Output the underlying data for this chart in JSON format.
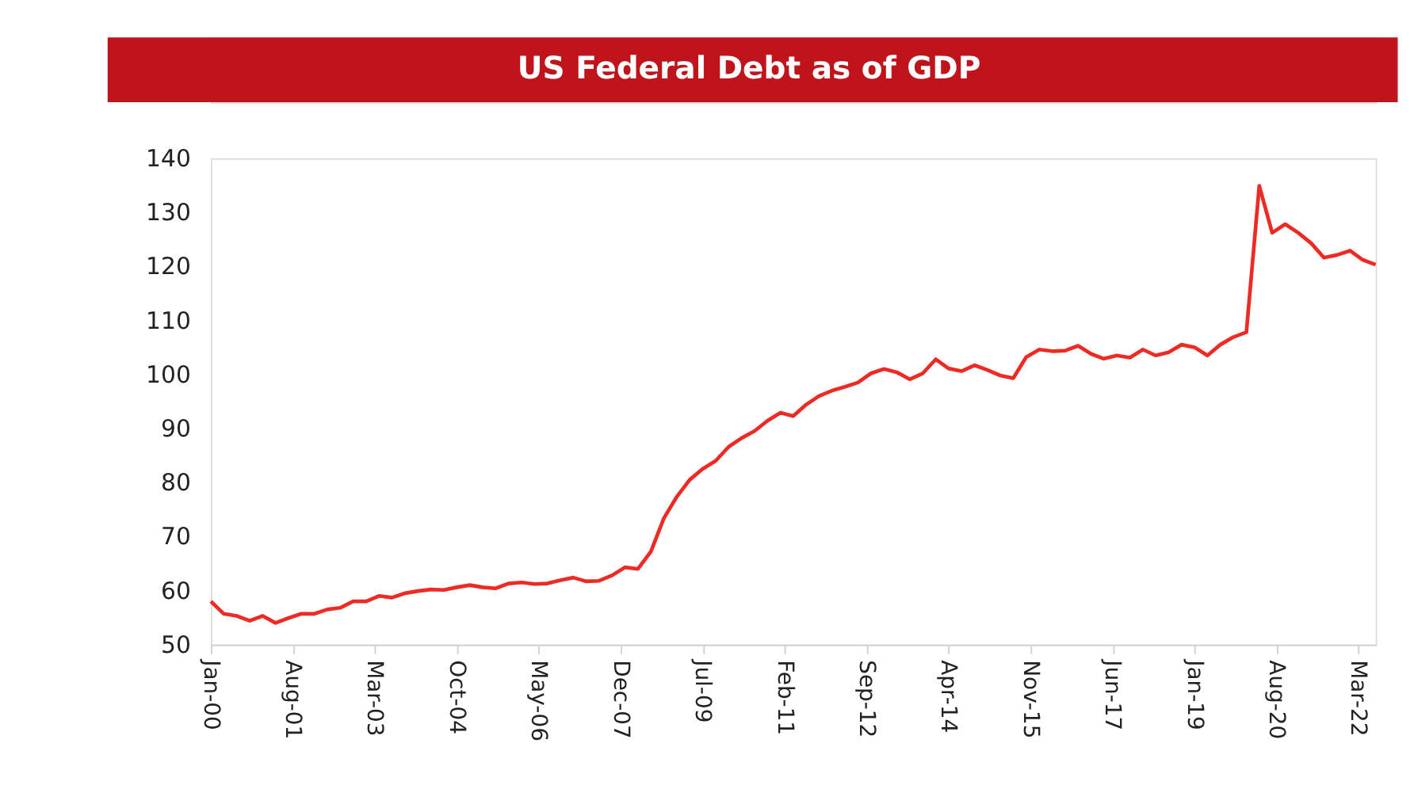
{
  "chart_data": {
    "type": "line",
    "title": "US Federal Debt as of GDP",
    "x": [
      "2000-01",
      "2000-04",
      "2000-07",
      "2000-10",
      "2001-01",
      "2001-04",
      "2001-07",
      "2001-10",
      "2002-01",
      "2002-04",
      "2002-07",
      "2002-10",
      "2003-01",
      "2003-04",
      "2003-07",
      "2003-10",
      "2004-01",
      "2004-04",
      "2004-07",
      "2004-10",
      "2005-01",
      "2005-04",
      "2005-07",
      "2005-10",
      "2006-01",
      "2006-04",
      "2006-07",
      "2006-10",
      "2007-01",
      "2007-04",
      "2007-07",
      "2007-10",
      "2008-01",
      "2008-04",
      "2008-07",
      "2008-10",
      "2009-01",
      "2009-04",
      "2009-07",
      "2009-10",
      "2010-01",
      "2010-04",
      "2010-07",
      "2010-10",
      "2011-01",
      "2011-04",
      "2011-07",
      "2011-10",
      "2012-01",
      "2012-04",
      "2012-07",
      "2012-10",
      "2013-01",
      "2013-04",
      "2013-07",
      "2013-10",
      "2014-01",
      "2014-04",
      "2014-07",
      "2014-10",
      "2015-01",
      "2015-04",
      "2015-07",
      "2015-10",
      "2016-01",
      "2016-04",
      "2016-07",
      "2016-10",
      "2017-01",
      "2017-04",
      "2017-07",
      "2017-10",
      "2018-01",
      "2018-04",
      "2018-07",
      "2018-10",
      "2019-01",
      "2019-04",
      "2019-07",
      "2019-10",
      "2020-01",
      "2020-04",
      "2020-07",
      "2020-10",
      "2021-01",
      "2021-04",
      "2021-07",
      "2021-10",
      "2022-01",
      "2022-04",
      "2022-07"
    ],
    "series": [
      {
        "color": "#ee2a24",
        "values": [
          58.0,
          55.7,
          55.3,
          54.4,
          55.3,
          54.0,
          54.9,
          55.7,
          55.7,
          56.5,
          56.8,
          58.0,
          58.0,
          59.0,
          58.7,
          59.5,
          59.9,
          60.2,
          60.1,
          60.6,
          61.0,
          60.6,
          60.4,
          61.3,
          61.5,
          61.2,
          61.3,
          61.9,
          62.4,
          61.7,
          61.8,
          62.8,
          64.3,
          64.0,
          67.2,
          73.4,
          77.4,
          80.5,
          82.5,
          84.0,
          86.6,
          88.2,
          89.5,
          91.4,
          92.9,
          92.3,
          94.4,
          96.0,
          97.0,
          97.7,
          98.5,
          100.2,
          101.0,
          100.4,
          99.1,
          100.2,
          102.8,
          101.1,
          100.6,
          101.7,
          100.8,
          99.8,
          99.3,
          103.2,
          104.6,
          104.3,
          104.4,
          105.3,
          103.8,
          102.9,
          103.5,
          103.1,
          104.6,
          103.5,
          104.1,
          105.5,
          105.0,
          103.5,
          105.5,
          106.9,
          107.8,
          134.9,
          126.2,
          127.8,
          126.2,
          124.3,
          121.6,
          122.1,
          122.9,
          121.2,
          120.3
        ]
      }
    ],
    "xlim": [
      "2000-01",
      "2022-07"
    ],
    "xticks": [
      {
        "value": "2000-01",
        "label": "Jan-00"
      },
      {
        "value": "2001-08",
        "label": "Aug-01"
      },
      {
        "value": "2003-03",
        "label": "Mar-03"
      },
      {
        "value": "2004-10",
        "label": "Oct-04"
      },
      {
        "value": "2006-05",
        "label": "May-06"
      },
      {
        "value": "2007-12",
        "label": "Dec-07"
      },
      {
        "value": "2009-07",
        "label": "Jul-09"
      },
      {
        "value": "2011-02",
        "label": "Feb-11"
      },
      {
        "value": "2012-09",
        "label": "Sep-12"
      },
      {
        "value": "2014-04",
        "label": "Apr-14"
      },
      {
        "value": "2015-11",
        "label": "Nov-15"
      },
      {
        "value": "2017-06",
        "label": "Jun-17"
      },
      {
        "value": "2019-01",
        "label": "Jan-19"
      },
      {
        "value": "2020-08",
        "label": "Aug-20"
      },
      {
        "value": "2022-03",
        "label": "Mar-22"
      }
    ],
    "ylim": [
      50,
      140
    ],
    "yticks": [
      50,
      60,
      70,
      80,
      90,
      100,
      110,
      120,
      130,
      140
    ],
    "grid": false,
    "marker": "none",
    "line_style": "solid"
  }
}
